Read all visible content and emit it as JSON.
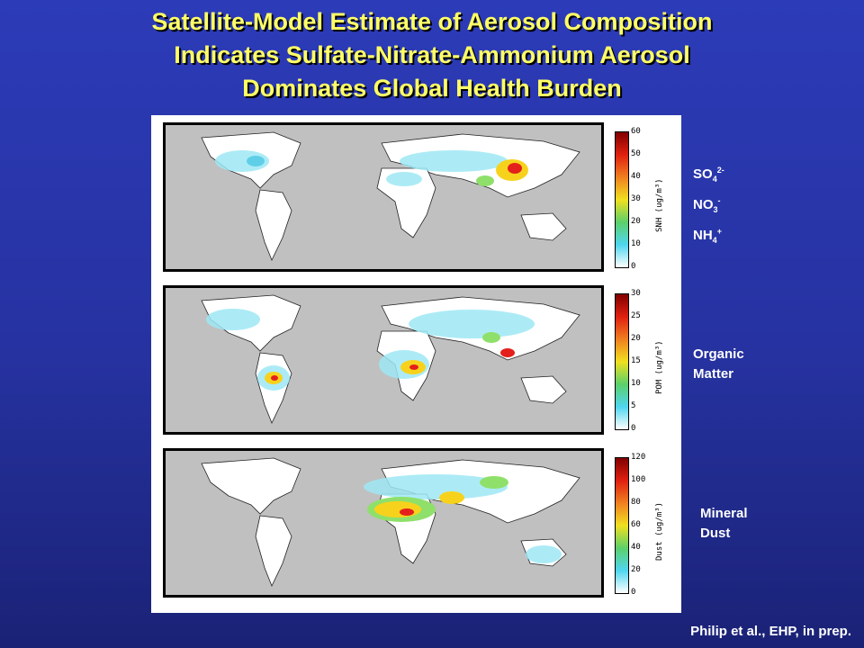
{
  "title": {
    "line1": "Satellite-Model Estimate of Aerosol Composition",
    "line2": "Indicates Sulfate-Nitrate-Ammonium Aerosol",
    "line3": "Dominates Global Health Burden"
  },
  "panels": [
    {
      "colorbar_title": "SNH (ug/m³)",
      "ticks": [
        "60",
        "50",
        "40",
        "30",
        "20",
        "10",
        "0"
      ]
    },
    {
      "colorbar_title": "POM (ug/m³)",
      "ticks": [
        "30",
        "25",
        "20",
        "15",
        "10",
        "5",
        "0"
      ]
    },
    {
      "colorbar_title": "Dust (ug/m³)",
      "ticks": [
        "120",
        "100",
        "80",
        "60",
        "40",
        "20",
        "0"
      ]
    }
  ],
  "labels": {
    "so4": {
      "base": "SO",
      "sub": "4",
      "sup": "2-"
    },
    "no3": {
      "base": "NO",
      "sub": "3",
      "sup": "-"
    },
    "nh4": {
      "base": "NH",
      "sub": "4",
      "sup": "+"
    },
    "organic_line1": "Organic",
    "organic_line2": "Matter",
    "dust_line1": "Mineral",
    "dust_line2": "Dust"
  },
  "credit": "Philip et al., EHP, in prep.",
  "colors": {
    "title": "#ffff66",
    "ocean": "#c0c0c0",
    "land": "#ffffff"
  }
}
